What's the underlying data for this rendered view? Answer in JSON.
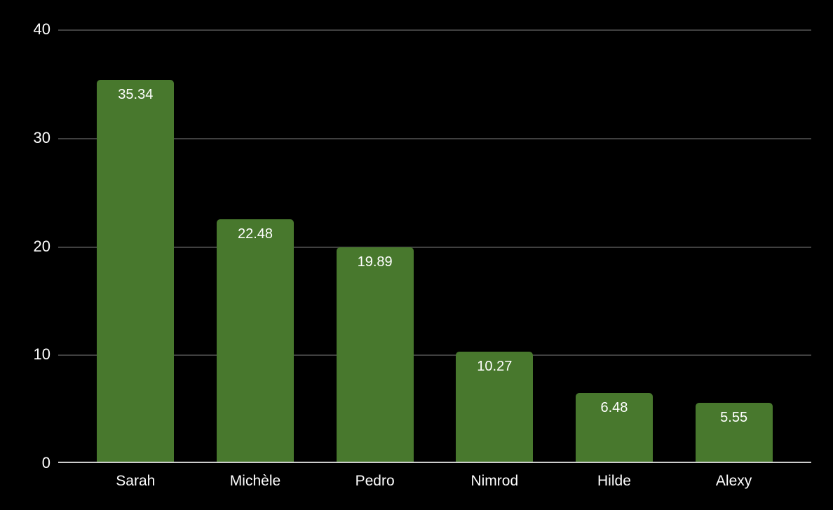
{
  "chart_data": {
    "type": "bar",
    "categories": [
      "Sarah",
      "Michèle",
      "Pedro",
      "Nimrod",
      "Hilde",
      "Alexy"
    ],
    "values": [
      35.34,
      22.48,
      19.89,
      10.27,
      6.48,
      5.55
    ],
    "value_labels": [
      "35.34",
      "22.48",
      "19.89",
      "10.27",
      "6.48",
      "5.55"
    ],
    "title": "",
    "xlabel": "",
    "ylabel": "",
    "ylim": [
      0,
      40
    ],
    "yticks": [
      "40",
      "30",
      "20",
      "10",
      "0"
    ],
    "grid": true,
    "legend": "none",
    "colors": {
      "bar": "#48782d",
      "background": "#000000",
      "text": "#ffffff",
      "gridline": "#404040",
      "axis_line": "#cccccc"
    }
  }
}
